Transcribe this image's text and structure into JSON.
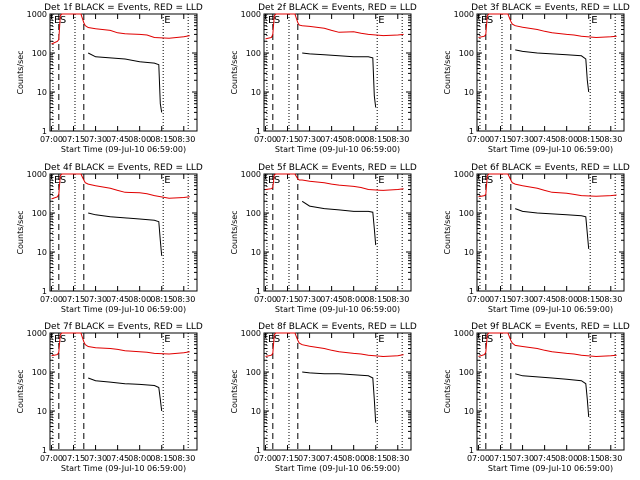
{
  "colors": {
    "events": "#000000",
    "lld": "#e00000",
    "axis": "#000000"
  },
  "shared": {
    "ylabel": "Counts/sec",
    "xlabel": "Start Time (09-Jul-10 06:59:00)",
    "x_ticks": [
      "07:00",
      "07:15",
      "07:30",
      "07:45",
      "08:00",
      "08:15",
      "08:30"
    ],
    "y_ticks": [
      "1",
      "10",
      "100",
      "1000"
    ],
    "y_scale": "log",
    "ylim": [
      1,
      1000
    ],
    "xlim_minutes_after_0700": [
      -1,
      99
    ],
    "grid": false,
    "markers": {
      "S": "S",
      "E": "E"
    }
  },
  "chart_data": [
    {
      "type": "line",
      "title": "Det 1f BLACK = Events, RED = LLD",
      "markers_min": {
        "E1": 1,
        "S": 5,
        "dot1": 16,
        "dash2": 22,
        "E2": 76,
        "dot3": 93
      },
      "series": [
        {
          "name": "RED",
          "x": [
            0,
            4,
            5,
            6,
            7,
            15,
            20,
            22,
            23,
            25,
            30,
            40,
            45,
            50,
            60,
            65,
            70,
            80,
            90,
            94
          ],
          "y": [
            170,
            200,
            220,
            900,
            1000,
            1000,
            1000,
            600,
            500,
            450,
            420,
            380,
            330,
            310,
            300,
            290,
            250,
            240,
            260,
            280
          ]
        },
        {
          "name": "BLACK",
          "x": [
            25,
            30,
            40,
            50,
            60,
            70,
            73,
            74,
            75
          ],
          "y": [
            100,
            80,
            75,
            70,
            60,
            55,
            50,
            5,
            3
          ]
        }
      ]
    },
    {
      "type": "line",
      "title": "Det 2f BLACK = Events, RED = LLD",
      "markers_min": {
        "E1": 1,
        "S": 5,
        "dot1": 16,
        "dash2": 22,
        "E2": 76,
        "dot3": 93
      },
      "series": [
        {
          "name": "RED",
          "x": [
            0,
            4,
            5,
            6,
            7,
            15,
            20,
            22,
            23,
            25,
            30,
            40,
            45,
            50,
            60,
            65,
            70,
            80,
            90,
            94
          ],
          "y": [
            230,
            250,
            300,
            900,
            1000,
            1000,
            1000,
            600,
            520,
            500,
            480,
            430,
            380,
            340,
            350,
            320,
            300,
            280,
            290,
            300
          ]
        },
        {
          "name": "BLACK",
          "x": [
            25,
            30,
            40,
            50,
            60,
            70,
            73,
            74,
            75
          ],
          "y": [
            100,
            95,
            90,
            85,
            80,
            80,
            75,
            8,
            4
          ]
        }
      ]
    },
    {
      "type": "line",
      "title": "Det 3f BLACK = Events, RED = LLD",
      "markers_min": {
        "E1": 1,
        "S": 5,
        "dot1": 16,
        "dash2": 22,
        "E2": 76,
        "dot3": 93
      },
      "series": [
        {
          "name": "RED",
          "x": [
            0,
            4,
            5,
            6,
            7,
            15,
            20,
            22,
            23,
            25,
            30,
            40,
            45,
            50,
            60,
            65,
            70,
            80,
            90,
            94
          ],
          "y": [
            250,
            270,
            300,
            900,
            1000,
            1000,
            1000,
            650,
            550,
            500,
            460,
            400,
            360,
            330,
            300,
            290,
            270,
            250,
            260,
            270
          ]
        },
        {
          "name": "BLACK",
          "x": [
            25,
            30,
            40,
            50,
            60,
            70,
            73,
            74,
            75
          ],
          "y": [
            120,
            110,
            100,
            95,
            90,
            85,
            70,
            20,
            10
          ]
        }
      ]
    },
    {
      "type": "line",
      "title": "Det 4f BLACK = Events, RED = LLD",
      "markers_min": {
        "E1": 1,
        "S": 5,
        "dot1": 16,
        "dash2": 22,
        "E2": 76,
        "dot3": 93
      },
      "series": [
        {
          "name": "RED",
          "x": [
            0,
            4,
            5,
            6,
            7,
            15,
            20,
            22,
            23,
            25,
            30,
            40,
            45,
            50,
            60,
            65,
            70,
            80,
            90,
            94
          ],
          "y": [
            230,
            260,
            300,
            900,
            1000,
            1000,
            1000,
            700,
            600,
            550,
            500,
            430,
            380,
            340,
            330,
            310,
            280,
            240,
            250,
            260
          ]
        },
        {
          "name": "BLACK",
          "x": [
            25,
            30,
            40,
            50,
            60,
            70,
            73,
            74,
            75
          ],
          "y": [
            100,
            90,
            80,
            75,
            70,
            65,
            60,
            20,
            8
          ]
        }
      ]
    },
    {
      "type": "line",
      "title": "Det 5f BLACK = Events, RED = LLD",
      "markers_min": {
        "E1": 1,
        "S": 5,
        "dot1": 16,
        "dash2": 22,
        "E2": 76,
        "dot3": 93
      },
      "series": [
        {
          "name": "RED",
          "x": [
            0,
            4,
            5,
            6,
            7,
            15,
            20,
            22,
            23,
            25,
            30,
            40,
            45,
            50,
            60,
            65,
            70,
            80,
            90,
            94
          ],
          "y": [
            400,
            420,
            450,
            950,
            1000,
            1000,
            1000,
            750,
            700,
            700,
            650,
            600,
            550,
            520,
            480,
            450,
            400,
            380,
            400,
            420
          ]
        },
        {
          "name": "BLACK",
          "x": [
            25,
            30,
            40,
            50,
            60,
            70,
            73,
            74,
            75
          ],
          "y": [
            200,
            150,
            130,
            120,
            110,
            110,
            105,
            40,
            15
          ]
        }
      ]
    },
    {
      "type": "line",
      "title": "Det 6f BLACK = Events, RED = LLD",
      "markers_min": {
        "E1": 1,
        "S": 5,
        "dot1": 16,
        "dash2": 22,
        "E2": 76,
        "dot3": 93
      },
      "series": [
        {
          "name": "RED",
          "x": [
            0,
            4,
            5,
            6,
            7,
            15,
            20,
            22,
            23,
            25,
            30,
            40,
            45,
            50,
            60,
            65,
            70,
            80,
            90,
            94
          ],
          "y": [
            260,
            280,
            300,
            900,
            1000,
            1000,
            1000,
            700,
            600,
            550,
            500,
            430,
            380,
            340,
            320,
            300,
            280,
            270,
            280,
            290
          ]
        },
        {
          "name": "BLACK",
          "x": [
            25,
            30,
            40,
            50,
            60,
            70,
            73,
            74,
            75
          ],
          "y": [
            130,
            110,
            100,
            95,
            90,
            85,
            80,
            30,
            12
          ]
        }
      ]
    },
    {
      "type": "line",
      "title": "Det 7f BLACK = Events, RED = LLD",
      "markers_min": {
        "E1": 1,
        "S": 5,
        "dot1": 16,
        "dash2": 22,
        "E2": 76,
        "dot3": 93
      },
      "series": [
        {
          "name": "RED",
          "x": [
            0,
            4,
            5,
            6,
            7,
            15,
            20,
            22,
            23,
            25,
            30,
            40,
            45,
            50,
            60,
            65,
            70,
            80,
            90,
            94
          ],
          "y": [
            260,
            280,
            320,
            900,
            1000,
            1000,
            1000,
            600,
            500,
            450,
            420,
            400,
            380,
            350,
            330,
            320,
            300,
            290,
            310,
            330
          ]
        },
        {
          "name": "BLACK",
          "x": [
            25,
            30,
            40,
            50,
            60,
            70,
            73,
            74,
            75
          ],
          "y": [
            70,
            60,
            55,
            50,
            48,
            45,
            40,
            20,
            10
          ]
        }
      ]
    },
    {
      "type": "line",
      "title": "Det 8f BLACK = Events, RED = LLD",
      "markers_min": {
        "E1": 1,
        "S": 5,
        "dot1": 16,
        "dash2": 22,
        "E2": 76,
        "dot3": 93
      },
      "series": [
        {
          "name": "RED",
          "x": [
            0,
            4,
            5,
            6,
            7,
            15,
            20,
            22,
            23,
            25,
            30,
            40,
            45,
            50,
            60,
            65,
            70,
            80,
            90,
            94
          ],
          "y": [
            250,
            270,
            300,
            900,
            1000,
            1000,
            1000,
            650,
            550,
            500,
            460,
            400,
            360,
            330,
            300,
            290,
            270,
            250,
            260,
            280
          ]
        },
        {
          "name": "BLACK",
          "x": [
            25,
            30,
            40,
            50,
            60,
            70,
            73,
            74,
            75
          ],
          "y": [
            100,
            95,
            90,
            90,
            85,
            80,
            70,
            20,
            5
          ]
        }
      ]
    },
    {
      "type": "line",
      "title": "Det 9f BLACK = Events, RED = LLD",
      "markers_min": {
        "E1": 1,
        "S": 5,
        "dot1": 16,
        "dash2": 22,
        "E2": 76,
        "dot3": 93
      },
      "series": [
        {
          "name": "RED",
          "x": [
            0,
            4,
            5,
            6,
            7,
            15,
            20,
            22,
            23,
            25,
            30,
            40,
            45,
            50,
            60,
            65,
            70,
            80,
            90,
            94
          ],
          "y": [
            250,
            280,
            320,
            900,
            1000,
            1000,
            1000,
            650,
            550,
            480,
            450,
            400,
            360,
            330,
            300,
            290,
            270,
            250,
            260,
            270
          ]
        },
        {
          "name": "BLACK",
          "x": [
            25,
            30,
            40,
            50,
            60,
            70,
            73,
            74,
            75
          ],
          "y": [
            90,
            80,
            75,
            70,
            65,
            60,
            50,
            20,
            7
          ]
        }
      ]
    }
  ]
}
